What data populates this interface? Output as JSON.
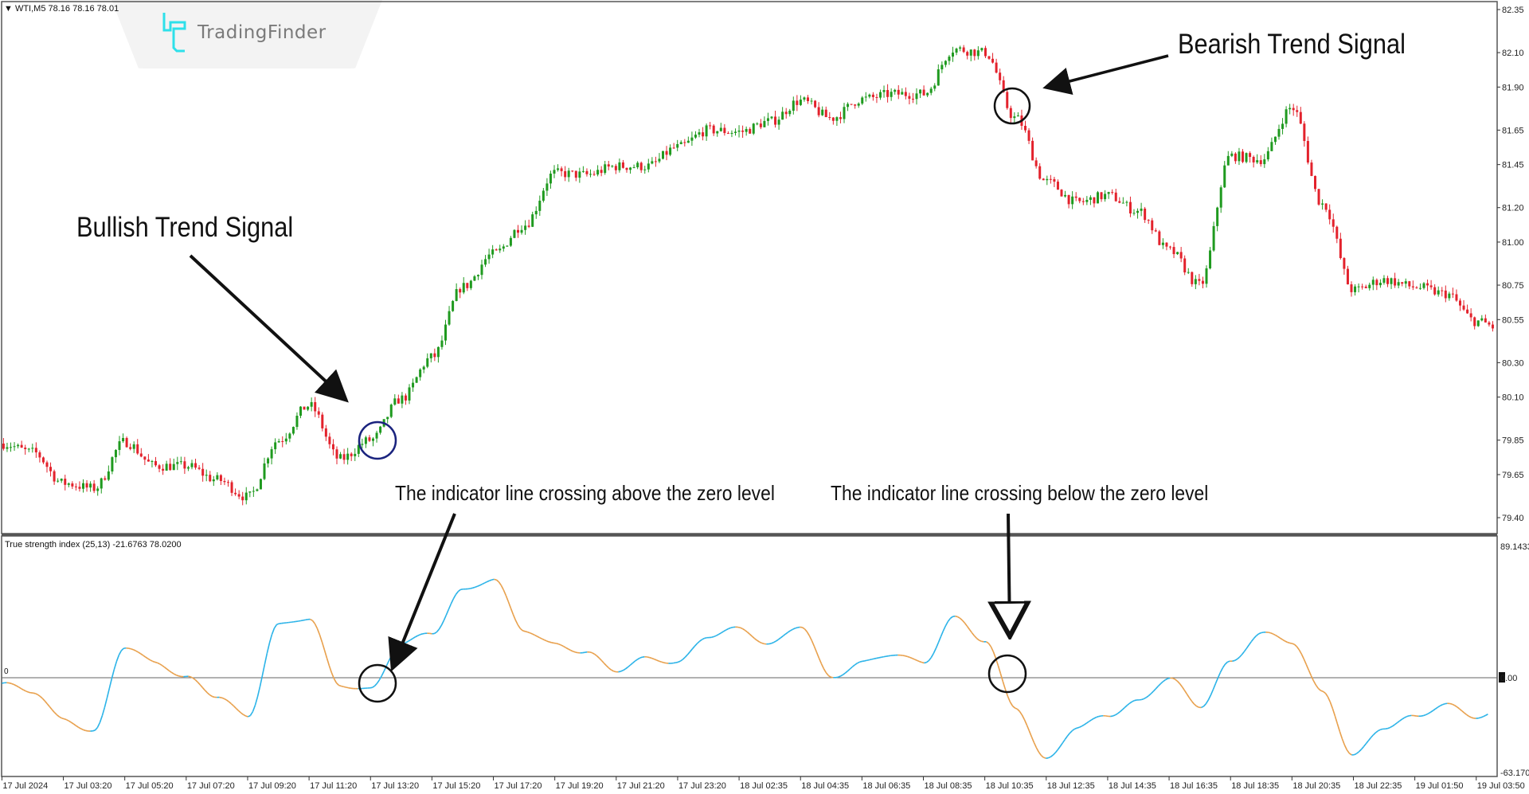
{
  "header": {
    "symbol_info": "▼ WTI,M5  78.16 78.16 78.01",
    "logo_text": "TradingFinder"
  },
  "indicator_label": "True strength index (25,13) -21.6763 78.0200",
  "annotations": {
    "bullish": "Bullish Trend Signal",
    "bearish": "Bearish Trend Signal",
    "cross_above": "The indicator line crossing above the zero level",
    "cross_below": "The indicator line crossing below the zero level"
  },
  "colors": {
    "bull_candle": "#1f9a1f",
    "bear_candle": "#e3222c",
    "tsi_rising": "#2bb3e8",
    "tsi_falling": "#e8a04c",
    "bullish_circle": "#1a237e",
    "bearish_circle": "#111111"
  },
  "chart_data": [
    {
      "type": "candlestick",
      "title": "WTI,M5",
      "ylim": [
        79.4,
        82.35
      ],
      "y_ticks": [
        "82.35",
        "82.10",
        "81.90",
        "81.65",
        "81.45",
        "81.20",
        "81.00",
        "80.75",
        "80.55",
        "80.30",
        "80.10",
        "79.85",
        "79.65",
        "79.40"
      ],
      "x_ticks": [
        "17 Jul 2024",
        "17 Jul 03:20",
        "17 Jul 05:20",
        "17 Jul 07:20",
        "17 Jul 09:20",
        "17 Jul 11:20",
        "17 Jul 13:20",
        "17 Jul 15:20",
        "17 Jul 17:20",
        "17 Jul 19:20",
        "17 Jul 21:20",
        "17 Jul 23:20",
        "18 Jul 02:35",
        "18 Jul 04:35",
        "18 Jul 06:35",
        "18 Jul 08:35",
        "18 Jul 10:35",
        "18 Jul 12:35",
        "18 Jul 14:35",
        "18 Jul 16:35",
        "18 Jul 18:35",
        "18 Jul 20:35",
        "18 Jul 22:35",
        "19 Jul 01:50",
        "19 Jul 03:50"
      ],
      "close_at_half_ticks": [
        79.83,
        79.78,
        79.6,
        79.57,
        79.84,
        79.7,
        79.7,
        79.62,
        79.52,
        79.85,
        80.05,
        79.74,
        79.85,
        80.09,
        80.33,
        80.74,
        80.93,
        81.1,
        81.4,
        81.39,
        81.44,
        81.44,
        81.55,
        81.65,
        81.64,
        81.7,
        81.82,
        81.72,
        81.83,
        81.86,
        81.86,
        82.12,
        82.1,
        81.72,
        81.35,
        81.23,
        81.27,
        81.18,
        80.95,
        80.75,
        81.5,
        81.48,
        81.78,
        81.22,
        80.72,
        80.78,
        80.74,
        80.7,
        80.54
      ],
      "last_close": 80.48
    },
    {
      "type": "line",
      "title": "True strength index (25,13)",
      "ylim": [
        -63.17,
        89.1433
      ],
      "y_ticks": [
        "89.1433",
        "0.00",
        "-63.170"
      ],
      "zero_label": "0",
      "values_at_half_ticks": [
        -4,
        -9,
        -28,
        -36,
        21,
        10,
        0,
        -12,
        -26,
        35,
        40,
        -5,
        -8,
        23,
        30,
        58,
        66,
        32,
        22,
        17,
        5,
        13,
        10,
        28,
        33,
        22,
        35,
        0,
        10,
        16,
        10,
        40,
        25,
        -20,
        -55,
        -33,
        -25,
        -16,
        0,
        -19,
        10,
        30,
        24,
        -10,
        -52,
        -33,
        -26,
        -18,
        -26
      ],
      "last_value": -21.68
    }
  ]
}
